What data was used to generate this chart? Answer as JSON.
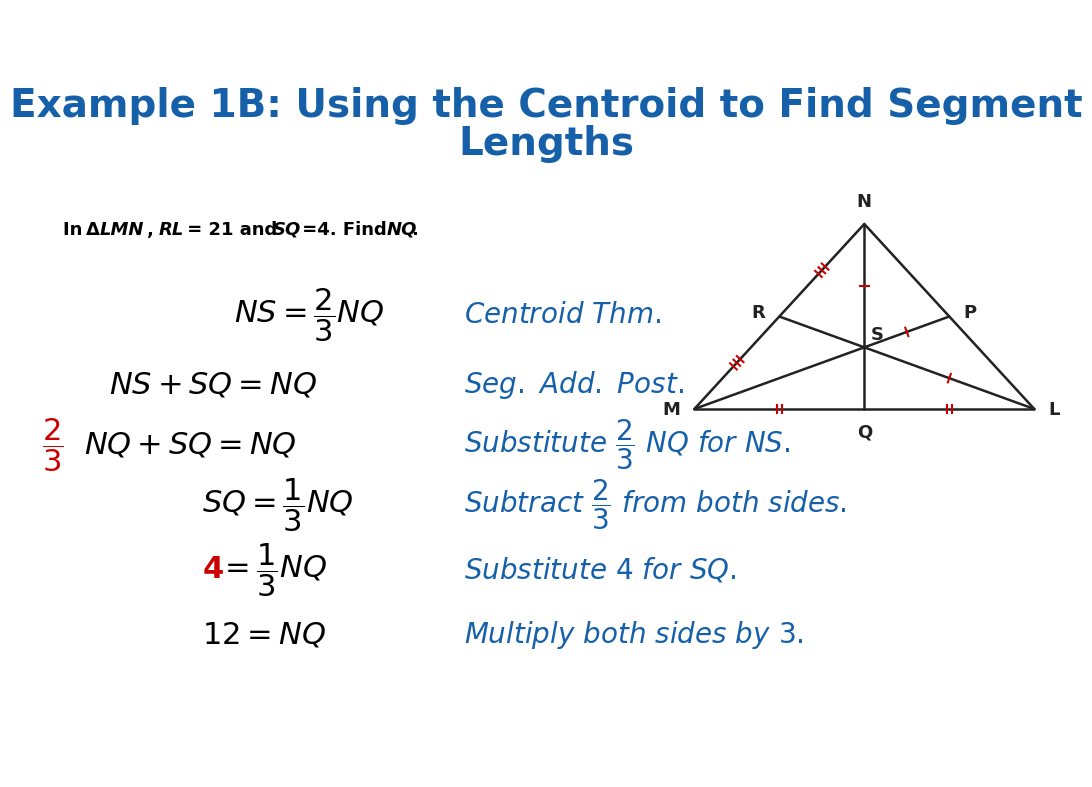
{
  "title_line1": "Example 1B: Using the Centroid to Find Segment",
  "title_line2": "Lengths",
  "title_color": "#1560A8",
  "title_fontsize": 28,
  "bg_color": "#ffffff",
  "given_fontsize": 14,
  "eq_color": "#000000",
  "blue_color": "#1560A8",
  "red_color": "#cc0000",
  "tri_color": "#222222",
  "tick_color": "#cc0000",
  "fs_math": 22,
  "fs_comment": 20
}
